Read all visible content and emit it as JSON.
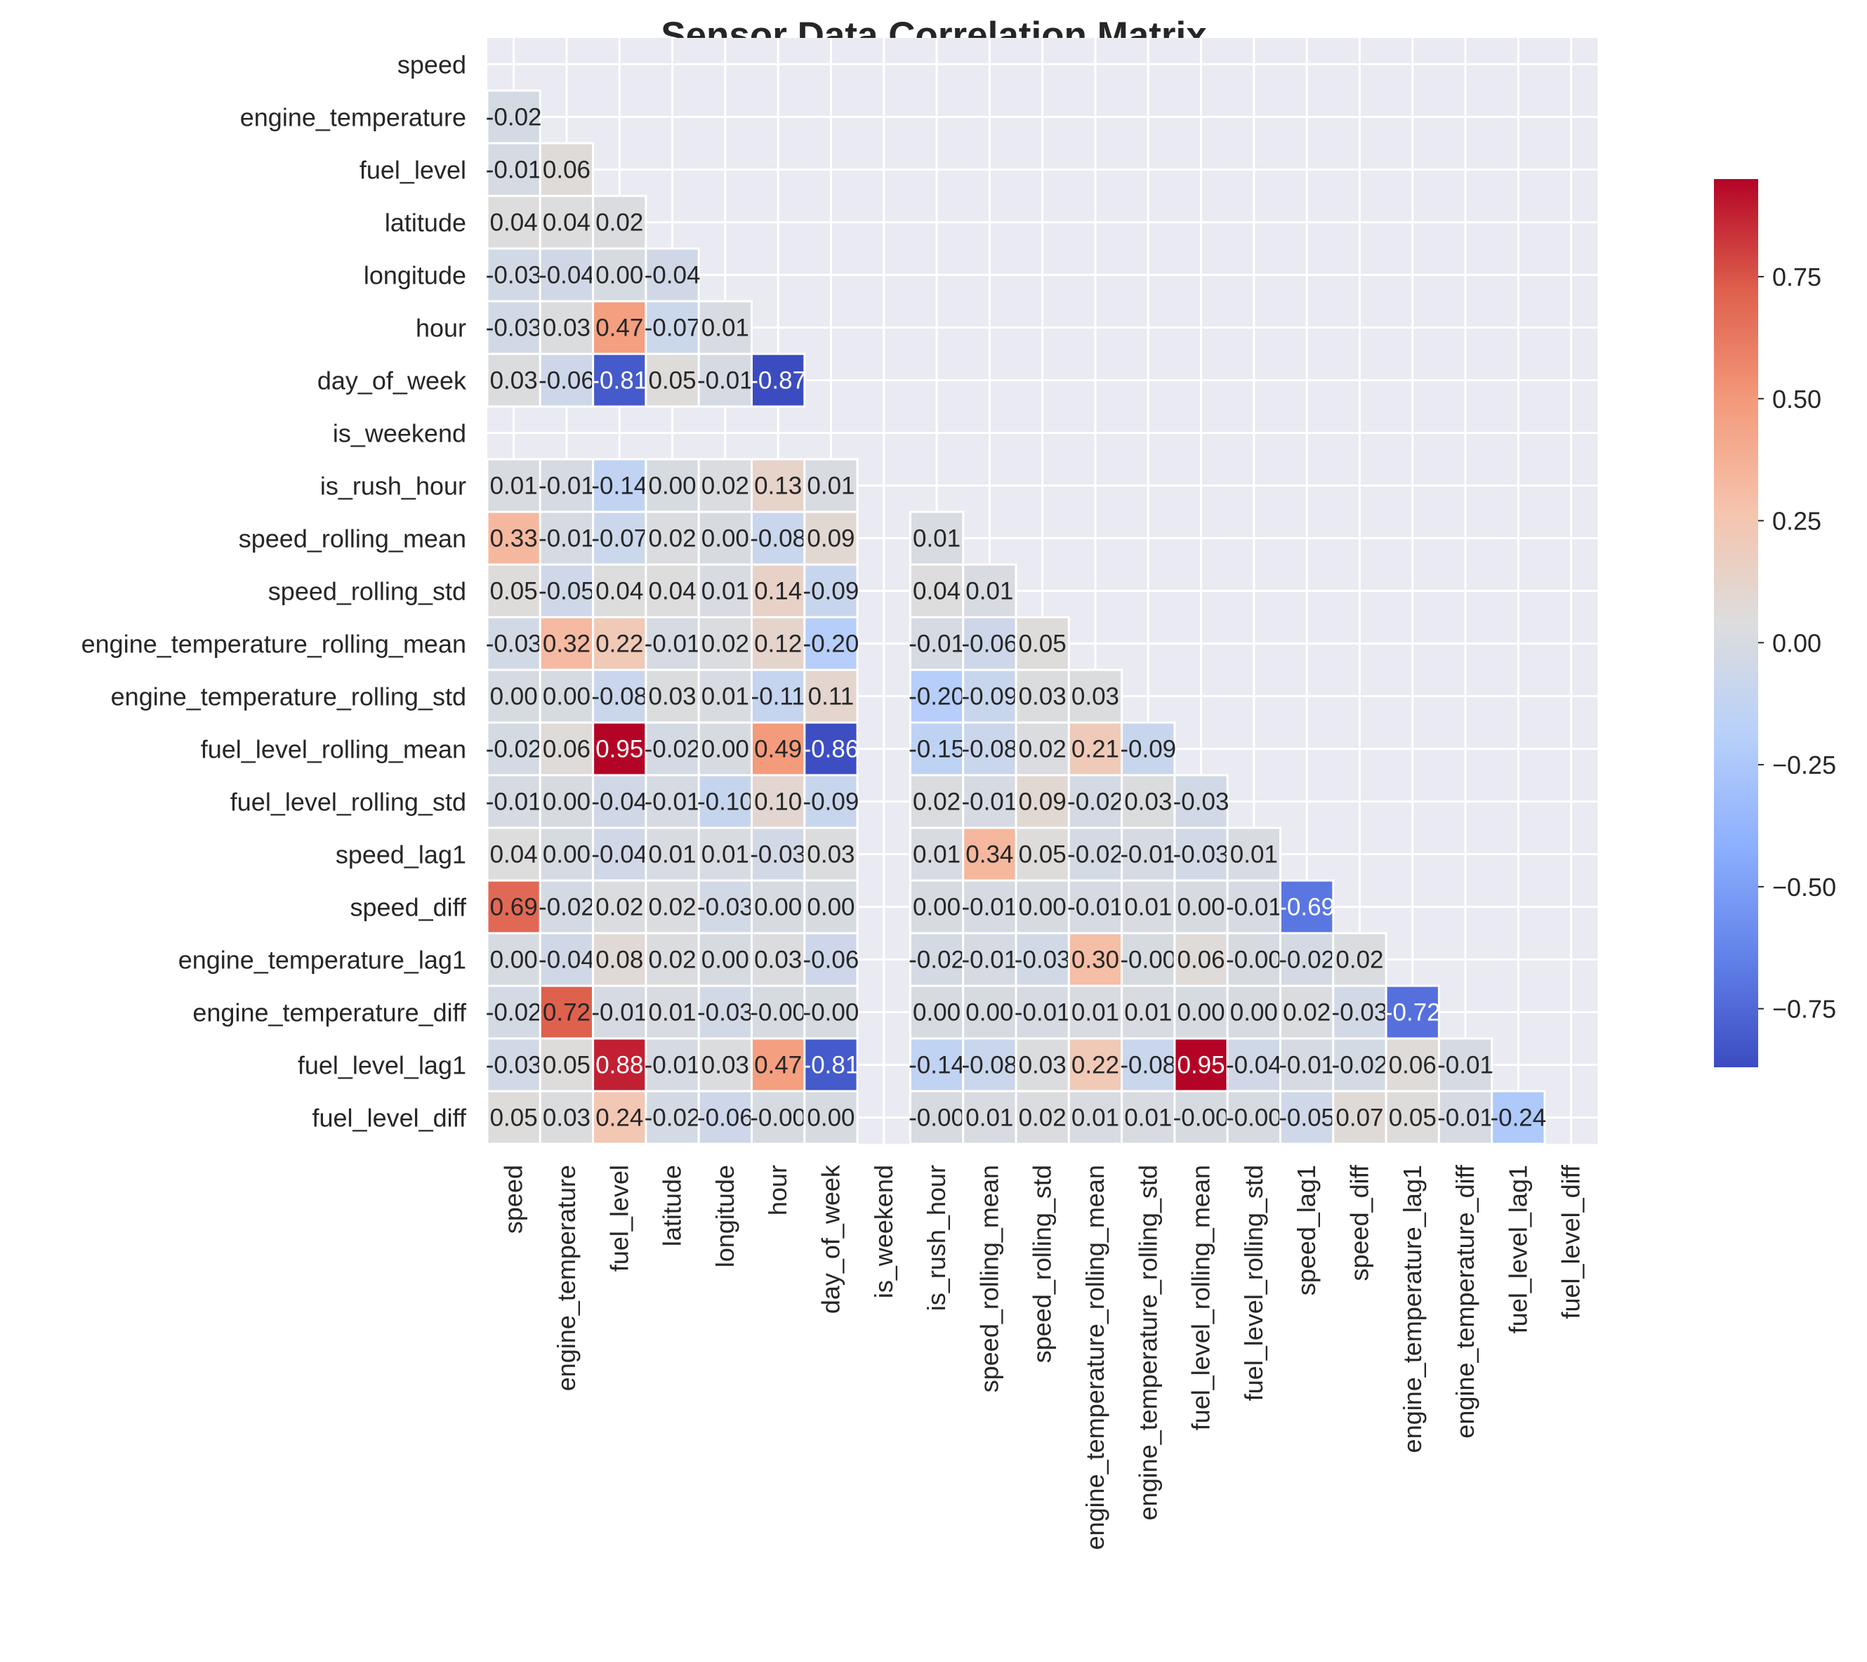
{
  "chart_data": {
    "type": "heatmap",
    "title": "Sensor Data Correlation Matrix",
    "variables": [
      "speed",
      "engine_temperature",
      "fuel_level",
      "latitude",
      "longitude",
      "hour",
      "day_of_week",
      "is_weekend",
      "is_rush_hour",
      "speed_rolling_mean",
      "speed_rolling_std",
      "engine_temperature_rolling_mean",
      "engine_temperature_rolling_std",
      "fuel_level_rolling_mean",
      "fuel_level_rolling_std",
      "speed_lag1",
      "speed_diff",
      "engine_temperature_lag1",
      "engine_temperature_diff",
      "fuel_level_lag1",
      "fuel_level_diff"
    ],
    "mask": "upper-triangle-and-diagonal",
    "lower_triangle_values": [
      [],
      [
        -0.02
      ],
      [
        -0.01,
        0.06
      ],
      [
        0.04,
        0.04,
        0.02
      ],
      [
        -0.03,
        -0.04,
        0.0,
        -0.04
      ],
      [
        -0.03,
        0.03,
        0.47,
        -0.07,
        0.01
      ],
      [
        0.03,
        -0.06,
        -0.81,
        0.05,
        -0.01,
        -0.87
      ],
      [
        null,
        null,
        null,
        null,
        null,
        null,
        null
      ],
      [
        0.01,
        -0.01,
        -0.14,
        0.0,
        0.02,
        0.13,
        0.01,
        null
      ],
      [
        0.33,
        -0.01,
        -0.07,
        0.02,
        0.0,
        -0.08,
        0.09,
        null,
        0.01
      ],
      [
        0.05,
        -0.05,
        0.04,
        0.04,
        0.01,
        0.14,
        -0.09,
        null,
        0.04,
        0.01
      ],
      [
        -0.03,
        0.32,
        0.22,
        -0.01,
        0.02,
        0.12,
        -0.2,
        null,
        -0.01,
        -0.06,
        0.05
      ],
      [
        0.0,
        0.0,
        -0.08,
        0.03,
        0.01,
        -0.11,
        0.11,
        null,
        -0.2,
        -0.09,
        0.03,
        0.03
      ],
      [
        -0.02,
        0.06,
        0.95,
        -0.02,
        0.0,
        0.49,
        -0.86,
        null,
        -0.15,
        -0.08,
        0.02,
        0.21,
        -0.09
      ],
      [
        -0.01,
        0.0,
        -0.04,
        -0.01,
        -0.1,
        0.1,
        -0.09,
        null,
        0.02,
        -0.01,
        0.09,
        -0.02,
        0.03,
        -0.03
      ],
      [
        0.04,
        0.0,
        -0.04,
        0.01,
        0.01,
        -0.03,
        0.03,
        null,
        0.01,
        0.34,
        0.05,
        -0.02,
        -0.01,
        -0.03,
        0.01
      ],
      [
        0.69,
        -0.02,
        0.02,
        0.02,
        -0.03,
        0.0,
        0.0,
        null,
        0.0,
        -0.01,
        0.0,
        -0.01,
        0.01,
        0.0,
        -0.01,
        -0.69
      ],
      [
        0.0,
        -0.04,
        0.08,
        0.02,
        0.0,
        0.03,
        -0.06,
        null,
        -0.02,
        -0.01,
        -0.03,
        0.3,
        -0.0,
        0.06,
        -0.0,
        -0.02,
        0.02
      ],
      [
        -0.02,
        0.72,
        -0.01,
        0.01,
        -0.03,
        -0.0,
        -0.0,
        null,
        0.0,
        0.0,
        -0.01,
        0.01,
        0.01,
        0.0,
        0.0,
        0.02,
        -0.03,
        -0.72
      ],
      [
        -0.03,
        0.05,
        0.88,
        -0.01,
        0.03,
        0.47,
        -0.81,
        null,
        -0.14,
        -0.08,
        0.03,
        0.22,
        -0.08,
        0.95,
        -0.04,
        -0.01,
        -0.02,
        0.06,
        -0.01
      ],
      [
        0.05,
        0.03,
        0.24,
        -0.02,
        -0.06,
        -0.0,
        0.0,
        null,
        -0.0,
        0.01,
        0.02,
        0.01,
        0.01,
        -0.0,
        -0.0,
        -0.05,
        0.07,
        0.05,
        -0.01,
        -0.24
      ]
    ],
    "colorbar": {
      "colormap": "coolwarm",
      "vmin": -0.87,
      "vmax": 0.95,
      "ticks": [
        -0.75,
        -0.5,
        -0.25,
        0.0,
        0.25,
        0.5,
        0.75
      ],
      "tick_labels": [
        "−0.75",
        "−0.50",
        "−0.25",
        "0.00",
        "0.25",
        "0.50",
        "0.75"
      ]
    },
    "grid": true,
    "colors": {
      "background": "#eaeaf2",
      "grid": "#ffffff",
      "text": "#262626",
      "coolwarm_low": "#3b4cc0",
      "coolwarm_mid": "#dddddd",
      "coolwarm_high": "#b40426"
    }
  }
}
